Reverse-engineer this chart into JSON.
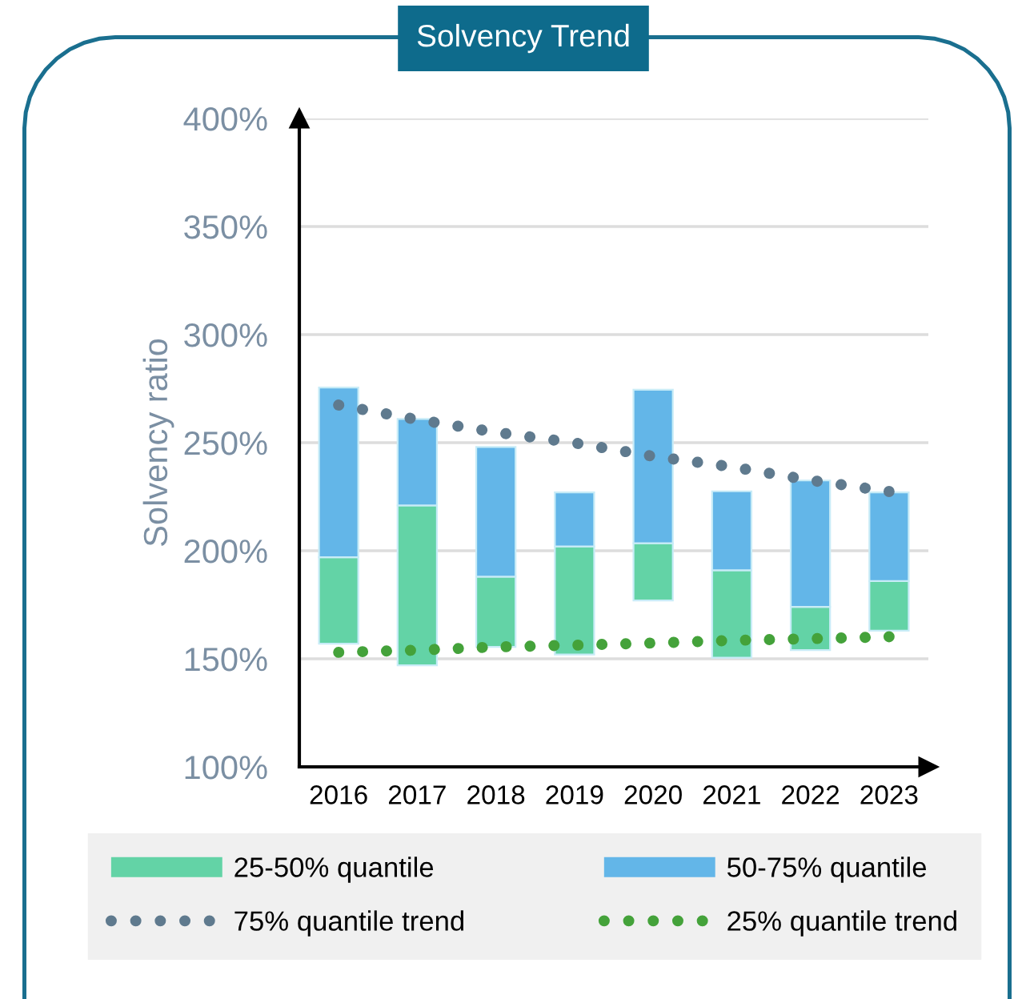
{
  "chart_data": {
    "type": "bar",
    "title": "Solvency Trend",
    "ylabel": "Solvency ratio",
    "categories": [
      "2016",
      "2017",
      "2018",
      "2019",
      "2020",
      "2021",
      "2022",
      "2023"
    ],
    "series": [
      {
        "name": "25-50% quantile",
        "color": "#63d3a6",
        "base": [
          157,
          147,
          155.5,
          152,
          177,
          150.5,
          154,
          163
        ],
        "values": [
          40,
          74,
          32.5,
          50,
          26.5,
          40.5,
          20,
          23
        ]
      },
      {
        "name": "75% quantile trend",
        "type": "line",
        "line_style": "dotted",
        "color": "#5f7a8e",
        "values": [
          267.4,
          260.7,
          254.8,
          249.9,
          243.7,
          238.8,
          232.6,
          227.4
        ]
      },
      {
        "name": "50-75% quantile",
        "color": "#63b6e8",
        "base": [
          197,
          221,
          188,
          202,
          203.5,
          191,
          174,
          186
        ],
        "values": [
          78.5,
          40,
          60,
          25,
          71,
          36.5,
          58.5,
          41
        ]
      },
      {
        "name": "25% quantile trend",
        "type": "line",
        "line_style": "dotted",
        "color": "#44a23a",
        "values": [
          153,
          154,
          155.5,
          156.3,
          157.3,
          158.5,
          159.3,
          160.2
        ]
      }
    ],
    "ylim": [
      100,
      400
    ],
    "yticks": [
      {
        "value": 100,
        "label": "100%"
      },
      {
        "value": 150,
        "label": "150%"
      },
      {
        "value": 200,
        "label": "200%"
      },
      {
        "value": 250,
        "label": "250%"
      },
      {
        "value": 300,
        "label": "300%"
      },
      {
        "value": 350,
        "label": "350%"
      },
      {
        "value": 400,
        "label": "400%"
      }
    ],
    "grid": "y",
    "legend": "bottom"
  }
}
